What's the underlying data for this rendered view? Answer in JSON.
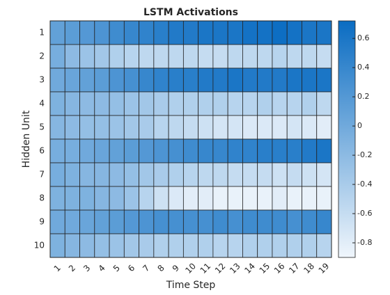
{
  "chart_data": {
    "type": "heatmap",
    "title": "LSTM Activations",
    "x_label": "Time Step",
    "y_label": "Hidden Unit",
    "x": [
      1,
      2,
      3,
      4,
      5,
      6,
      7,
      8,
      9,
      10,
      11,
      12,
      13,
      14,
      15,
      16,
      17,
      18,
      19
    ],
    "y": [
      1,
      2,
      3,
      4,
      5,
      6,
      7,
      8,
      9,
      10
    ],
    "z": [
      [
        0.1,
        0.15,
        0.2,
        0.25,
        0.35,
        0.4,
        0.45,
        0.5,
        0.55,
        0.55,
        0.6,
        0.6,
        0.6,
        0.65,
        0.65,
        0.7,
        0.65,
        0.6,
        0.6
      ],
      [
        -0.05,
        -0.2,
        -0.3,
        -0.35,
        -0.45,
        -0.5,
        -0.55,
        -0.55,
        -0.55,
        -0.55,
        -0.6,
        -0.6,
        -0.55,
        -0.55,
        -0.55,
        -0.5,
        -0.55,
        -0.55,
        -0.6
      ],
      [
        0.0,
        0.05,
        0.1,
        0.15,
        0.25,
        0.3,
        0.4,
        0.45,
        0.5,
        0.5,
        0.55,
        0.55,
        0.6,
        0.55,
        0.55,
        0.55,
        0.6,
        0.6,
        0.6
      ],
      [
        -0.1,
        -0.15,
        -0.2,
        -0.2,
        -0.25,
        -0.3,
        -0.35,
        -0.4,
        -0.45,
        -0.45,
        -0.45,
        -0.45,
        -0.5,
        -0.5,
        -0.45,
        -0.5,
        -0.5,
        -0.45,
        -0.55
      ],
      [
        -0.15,
        -0.2,
        -0.25,
        -0.25,
        -0.3,
        -0.35,
        -0.4,
        -0.5,
        -0.55,
        -0.6,
        -0.65,
        -0.7,
        -0.7,
        -0.75,
        -0.75,
        -0.75,
        -0.7,
        -0.75,
        -0.8
      ],
      [
        -0.05,
        -0.05,
        0.0,
        0.05,
        0.1,
        0.15,
        0.2,
        0.25,
        0.3,
        0.35,
        0.4,
        0.4,
        0.45,
        0.45,
        0.5,
        0.5,
        0.5,
        0.55,
        0.6
      ],
      [
        -0.05,
        -0.1,
        -0.15,
        -0.15,
        -0.2,
        -0.25,
        -0.35,
        -0.4,
        -0.45,
        -0.5,
        -0.55,
        -0.55,
        -0.6,
        -0.6,
        -0.6,
        -0.65,
        -0.6,
        -0.65,
        -0.7
      ],
      [
        -0.1,
        -0.1,
        -0.1,
        -0.15,
        -0.2,
        -0.3,
        -0.5,
        -0.65,
        -0.75,
        -0.8,
        -0.8,
        -0.85,
        -0.85,
        -0.85,
        -0.85,
        -0.8,
        -0.85,
        -0.85,
        -0.85
      ],
      [
        0.0,
        0.0,
        0.05,
        0.1,
        0.15,
        0.2,
        0.25,
        0.3,
        0.3,
        0.3,
        0.3,
        0.35,
        0.3,
        0.35,
        0.35,
        0.35,
        0.3,
        0.35,
        0.4
      ],
      [
        -0.1,
        -0.15,
        -0.2,
        -0.25,
        -0.3,
        -0.35,
        -0.4,
        -0.45,
        -0.45,
        -0.45,
        -0.45,
        -0.5,
        -0.5,
        -0.45,
        -0.45,
        -0.45,
        -0.45,
        -0.45,
        -0.5
      ]
    ],
    "colormap": [
      "#f0f6fc",
      "#0a6cc2"
    ],
    "clim": [
      -0.9,
      0.72
    ],
    "cticks": [
      -0.8,
      -0.6,
      -0.4,
      -0.2,
      0,
      0.2,
      0.4,
      0.6
    ]
  }
}
